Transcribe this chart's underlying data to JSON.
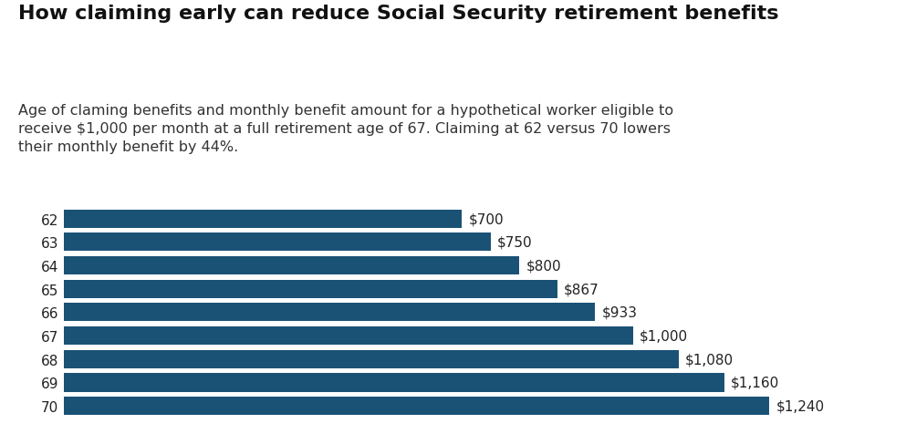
{
  "title": "How claiming early can reduce Social Security retirement benefits",
  "subtitle": "Age of claming benefits and monthly benefit amount for a hypothetical worker eligible to\nreceive $1,000 per month at a full retirement age of 67. Claiming at 62 versus 70 lowers\ntheir monthly benefit by 44%.",
  "ages": [
    62,
    63,
    64,
    65,
    66,
    67,
    68,
    69,
    70
  ],
  "values": [
    700,
    750,
    800,
    867,
    933,
    1000,
    1080,
    1160,
    1240
  ],
  "labels": [
    "$700",
    "$750",
    "$800",
    "$867",
    "$933",
    "$1,000",
    "$1,080",
    "$1,160",
    "$1,240"
  ],
  "bar_color": "#1a5276",
  "label_color": "#222222",
  "background_color": "#ffffff",
  "title_fontsize": 16,
  "subtitle_fontsize": 11.5,
  "bar_label_fontsize": 11,
  "ytick_fontsize": 11,
  "xlim": [
    0,
    1400
  ]
}
